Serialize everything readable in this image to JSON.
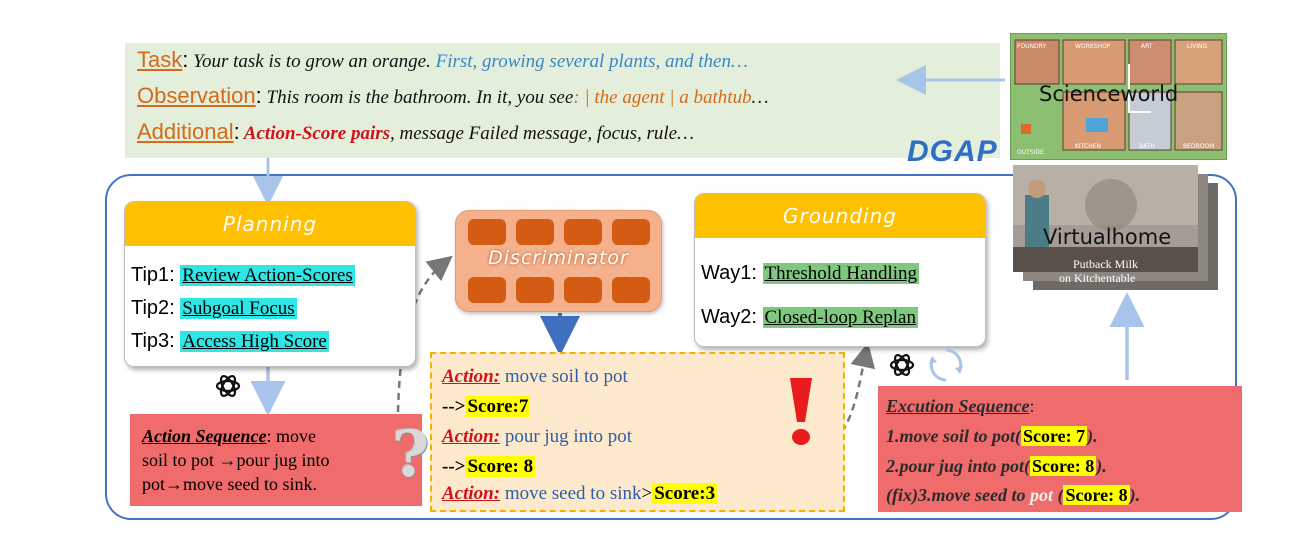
{
  "prompt": {
    "task_key": "Task",
    "task_text": " Your task is to grow an orange.",
    "task_cont": " First, growing several plants, and then…",
    "obs_key": "Observation",
    "obs_text": " This room is the bathroom. In it, you see",
    "obs_cont": ":  | the agent | a bathtub",
    "obs_end": "…",
    "add_key": "Additional",
    "add_red": " Action-Score pairs",
    "add_text": ", message Failed message, focus, rule…"
  },
  "brand": "DGAP",
  "planning": {
    "title": "Planning",
    "tips": [
      {
        "label": "Tip1: ",
        "text": "Review Action-Scores"
      },
      {
        "label": "Tip2: ",
        "text": "Subgoal Focus"
      },
      {
        "label": "Tip3: ",
        "text": "Access High Score"
      }
    ]
  },
  "discriminator": {
    "label": "Discriminator"
  },
  "grounding": {
    "title": "Grounding",
    "ways": [
      {
        "label": "Way1: ",
        "text": "Threshold Handling"
      },
      {
        "label": "Way2: ",
        "text": "Closed-loop Replan"
      }
    ]
  },
  "action_sequence": {
    "key": "Action Sequence",
    "line1": ": move",
    "line2": "soil to pot →pour jug into",
    "line3": "pot→move seed to sink."
  },
  "action_list": {
    "a1_key": "Action:",
    "a1_val": " move soil to pot",
    "s1_prefix": "-->",
    "s1": "Score:7",
    "a2_key": "Action:",
    "a2_val": " pour jug into pot",
    "s2_prefix": "-->",
    "s2": "Score: 8",
    "a3_key": "Action:",
    "a3_val": " move seed to sink",
    "s3_prefix": ">",
    "s3": "Score:3"
  },
  "execution": {
    "title": "Excution Sequence",
    "title_colon": ":",
    "r1_text": "1.move soil to pot",
    "r1_score": "Score: 7",
    "r2_text": "2.pour jug into pot",
    "r2_score": "Score: 8",
    "r3_text": "(fix)3.move seed to ",
    "r3_pot": "pot",
    "r3_score": "Score: 8"
  },
  "environments": {
    "scienceworld": "Scienceworld",
    "virtualhome": "Virtualhome",
    "vh_caption1": "Putback Milk",
    "vh_caption2": "on Kitchentable",
    "sw_rooms": [
      "FOUNDRY",
      "WORKSHOP",
      "ART",
      "LIVING",
      "OUTSIDE",
      "KITCHEN",
      "BATH",
      "BEDROOM"
    ]
  },
  "colors": {
    "frame": "#4472c4",
    "header_yellow": "#ffc000",
    "red_box": "#f06b6b",
    "highlight_yellow": "#ffff00",
    "cyan": "#2ee6e6",
    "green": "#7fc97f"
  },
  "icons": [
    "openai-logo-icon",
    "question-mark-icon",
    "exclamation-mark-icon",
    "refresh-cycle-icon"
  ]
}
